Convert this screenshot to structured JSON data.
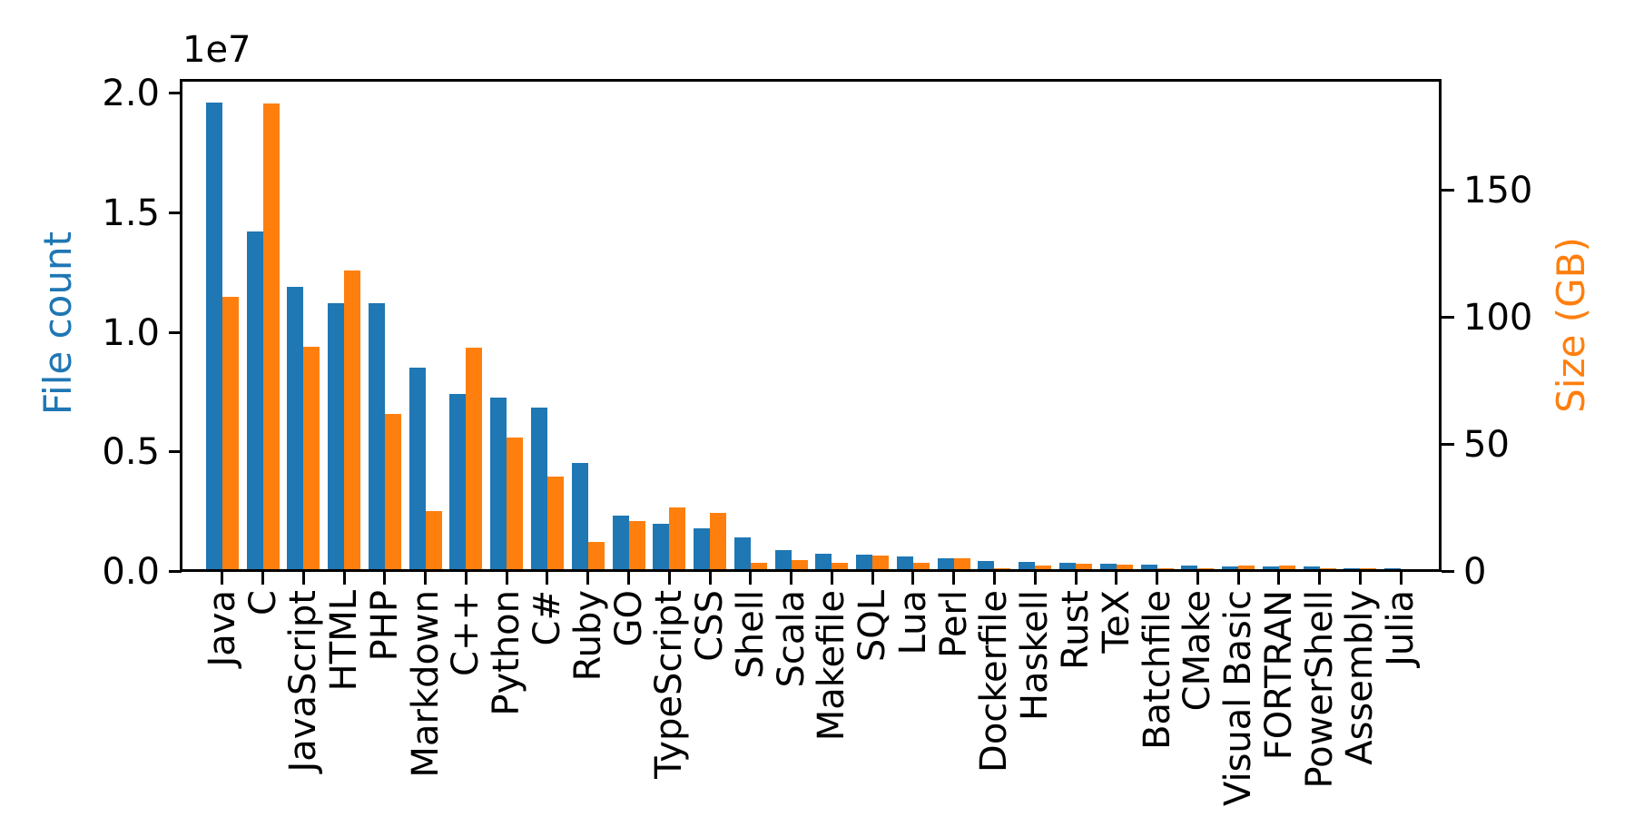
{
  "chart_data": {
    "type": "bar",
    "title": "",
    "grid": false,
    "legend": "none",
    "categories": [
      "Java",
      "C",
      "JavaScript",
      "HTML",
      "PHP",
      "Markdown",
      "C++",
      "Python",
      "C#",
      "Ruby",
      "GO",
      "TypeScript",
      "CSS",
      "Shell",
      "Scala",
      "Makefile",
      "SQL",
      "Lua",
      "Perl",
      "Dockerfile",
      "Haskell",
      "Rust",
      "TeX",
      "Batchfile",
      "CMake",
      "Visual Basic",
      "FORTRAN",
      "PowerShell",
      "Assembly",
      "Julia"
    ],
    "series": [
      {
        "name": "File count",
        "axis": "left",
        "color": "#1f77b4",
        "values": [
          19548190,
          14143113,
          11839883,
          11178557,
          11177610,
          8464626,
          7380520,
          7226626,
          6811652,
          4473331,
          2265436,
          1940406,
          1734406,
          1385648,
          835755,
          679430,
          656671,
          578554,
          497949,
          366505,
          340623,
          322431,
          251015,
          236945,
          175282,
          155652,
          142038,
          136846,
          82905,
          58317
        ]
      },
      {
        "name": "Size (GB)",
        "axis": "right",
        "color": "#ff7f0e",
        "values": [
          107.7,
          183.83,
          87.82,
          118.12,
          61.41,
          23.09,
          87.73,
          52.03,
          36.83,
          10.95,
          19.28,
          24.59,
          22.67,
          3.01,
          3.87,
          2.92,
          5.67,
          2.81,
          4.7,
          0.71,
          1.85,
          2.68,
          2.15,
          0.7,
          0.54,
          1.91,
          1.62,
          0.69,
          0.78,
          0.29
        ]
      }
    ],
    "left_axis": {
      "label": "File count",
      "color": "#1f77b4",
      "offset_text": "1e7",
      "tick_values": [
        0,
        5000000,
        10000000,
        15000000,
        20000000
      ],
      "tick_labels": [
        "0.0",
        "0.5",
        "1.0",
        "1.5",
        "2.0"
      ],
      "ylim": [
        0,
        20500000
      ]
    },
    "right_axis": {
      "label": "Size (GB)",
      "color": "#ff7f0e",
      "tick_values": [
        0,
        50,
        100,
        150
      ],
      "tick_labels": [
        "0",
        "50",
        "100",
        "150"
      ],
      "ylim": [
        0,
        193
      ]
    },
    "x_axis": {
      "tick_label_rotation_deg": 90
    }
  },
  "colors": {
    "background": "#ffffff",
    "axis": "#000000",
    "tick_text": "#000000"
  }
}
